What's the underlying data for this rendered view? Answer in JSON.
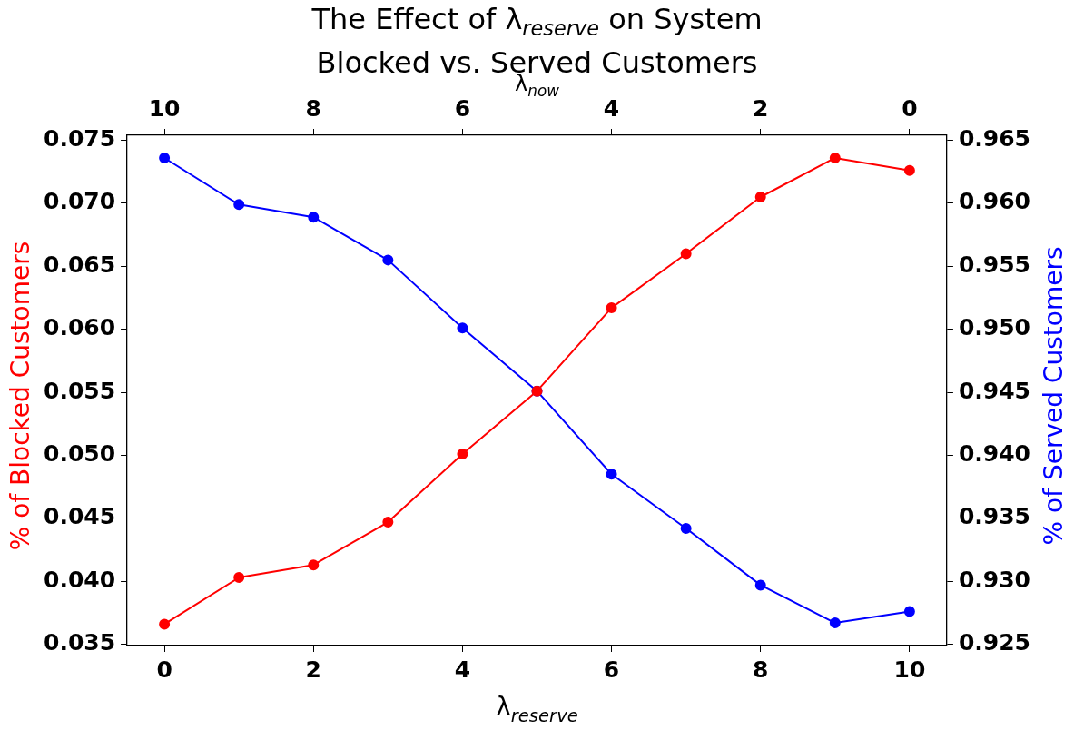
{
  "chart_data": {
    "type": "line",
    "title": "The Effect of λ$_{reserve}$ on System\nBlocked vs. Served Customers",
    "xlabel": "λ$_{reserve}$",
    "x2label": "λ$_{now}$",
    "ylabel": "% of Blocked Customers",
    "y2label": "% of Served Customers",
    "x": [
      0,
      1,
      2,
      3,
      4,
      5,
      6,
      7,
      8,
      9,
      10
    ],
    "series": [
      {
        "color": "#ff0000",
        "values": [
          0.0366,
          0.0403,
          0.0413,
          0.0447,
          0.0501,
          0.0551,
          0.0617,
          0.066,
          0.0705,
          0.0736,
          0.0726
        ]
      },
      {
        "color": "#0000ff",
        "axis": "y2",
        "values": [
          0.9636,
          0.9599,
          0.9589,
          0.9555,
          0.9501,
          0.9451,
          0.9385,
          0.9342,
          0.9297,
          0.9267,
          0.9276
        ]
      }
    ],
    "xlim": [
      -0.5,
      10.5
    ],
    "xticks": [
      0,
      2,
      4,
      6,
      8,
      10
    ],
    "x2lim": [
      10.5,
      -0.5
    ],
    "x2ticks": [
      10,
      8,
      6,
      4,
      2,
      0
    ],
    "ylim": [
      0.0349,
      0.0754
    ],
    "yticks": [
      0.035,
      {
        "value": 0.04,
        "label": "0.040"
      },
      0.045,
      {
        "value": 0.05,
        "label": "0.050"
      },
      0.055,
      {
        "value": 0.06,
        "label": "0.060"
      },
      0.065,
      {
        "value": 0.07,
        "label": "0.070"
      },
      0.075
    ],
    "y2lim": [
      0.9249,
      0.9654
    ],
    "y2ticks": [
      0.925,
      {
        "value": 0.93,
        "label": "0.930"
      },
      0.935,
      {
        "value": 0.94,
        "label": "0.940"
      },
      0.945,
      {
        "value": 0.95,
        "label": "0.950"
      },
      0.955,
      {
        "value": 0.96,
        "label": "0.960"
      },
      0.965
    ],
    "grid": false,
    "legend": false,
    "marker": "circle",
    "line_style": "solid"
  }
}
